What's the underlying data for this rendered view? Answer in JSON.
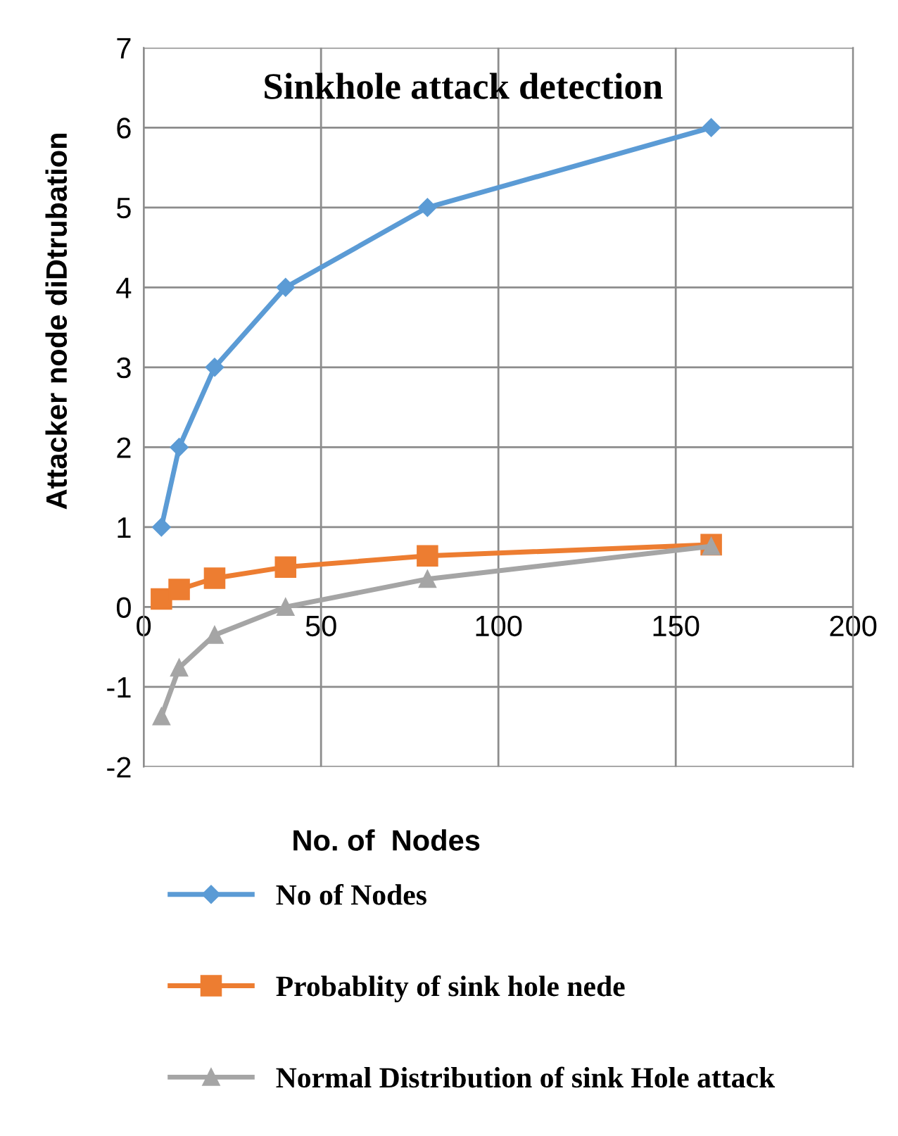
{
  "chart_data": {
    "type": "line",
    "title": "Sinkhole attack detection",
    "xlabel": "No. of  Nodes",
    "ylabel": "Attacker node diDtrubation",
    "x": [
      5,
      10,
      20,
      40,
      80,
      160
    ],
    "series": [
      {
        "name": "No of Nodes",
        "color": "#5b9bd5",
        "marker": "diamond",
        "values": [
          1,
          2,
          3,
          4,
          5,
          6
        ]
      },
      {
        "name": "Probablity of sink hole nede",
        "color": "#ed7d31",
        "marker": "square",
        "values": [
          0.1,
          0.22,
          0.36,
          0.5,
          0.64,
          0.78
        ]
      },
      {
        "name": "Normal Distribution of sink Hole attack",
        "color": "#a5a5a5",
        "marker": "triangle",
        "values": [
          -1.37,
          -0.76,
          -0.35,
          0,
          0.35,
          0.76
        ]
      }
    ],
    "xlim": [
      0,
      200
    ],
    "xticks": [
      0,
      50,
      100,
      150,
      200
    ],
    "ylim": [
      -2,
      7
    ],
    "yticks": [
      -2,
      -1,
      0,
      1,
      2,
      3,
      4,
      5,
      6,
      7
    ],
    "grid": true,
    "legend": "bottom",
    "line_style": "solid"
  }
}
